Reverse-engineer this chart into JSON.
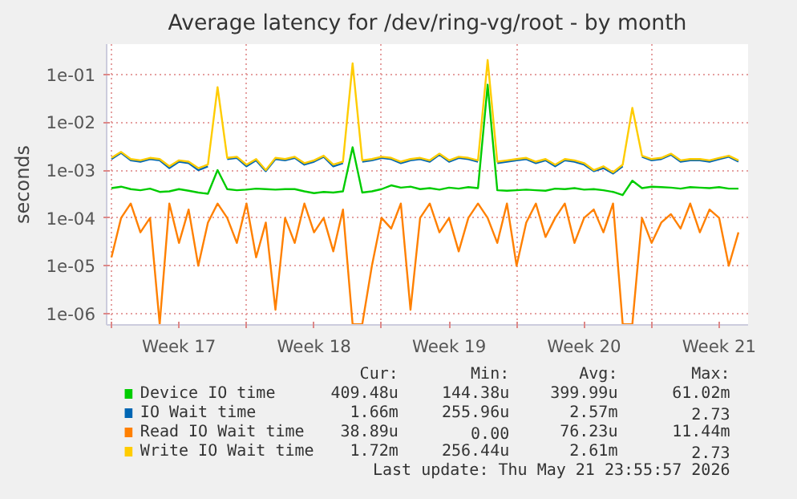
{
  "chart_data": {
    "type": "line",
    "title": "Average latency for /dev/ring-vg/root - by month",
    "ylabel": "seconds",
    "x": [
      "2026-04-19T00:00",
      "2026-04-19T12:00",
      "2026-04-20T00:00",
      "2026-04-20T12:00",
      "2026-04-21T00:00",
      "2026-04-21T12:00",
      "2026-04-22T00:00",
      "2026-04-22T12:00",
      "2026-04-23T00:00",
      "2026-04-23T12:00",
      "2026-04-24T00:00",
      "2026-04-24T12:00",
      "2026-04-25T00:00",
      "2026-04-25T12:00",
      "2026-04-26T00:00",
      "2026-04-26T12:00",
      "2026-04-27T00:00",
      "2026-04-27T12:00",
      "2026-04-28T00:00",
      "2026-04-28T12:00",
      "2026-04-29T00:00",
      "2026-04-29T12:00",
      "2026-04-30T00:00",
      "2026-04-30T12:00",
      "2026-05-01T00:00",
      "2026-05-01T12:00",
      "2026-05-02T00:00",
      "2026-05-02T12:00",
      "2026-05-03T00:00",
      "2026-05-03T12:00",
      "2026-05-04T00:00",
      "2026-05-04T12:00",
      "2026-05-05T00:00",
      "2026-05-05T12:00",
      "2026-05-06T00:00",
      "2026-05-06T12:00",
      "2026-05-07T00:00",
      "2026-05-07T12:00",
      "2026-05-08T00:00",
      "2026-05-08T12:00",
      "2026-05-09T00:00",
      "2026-05-09T12:00",
      "2026-05-10T00:00",
      "2026-05-10T12:00",
      "2026-05-11T00:00",
      "2026-05-11T12:00",
      "2026-05-12T00:00",
      "2026-05-12T12:00",
      "2026-05-13T00:00",
      "2026-05-13T12:00",
      "2026-05-14T00:00",
      "2026-05-14T12:00",
      "2026-05-15T00:00",
      "2026-05-15T12:00",
      "2026-05-16T00:00",
      "2026-05-16T12:00",
      "2026-05-17T00:00",
      "2026-05-17T12:00",
      "2026-05-18T00:00",
      "2026-05-18T12:00",
      "2026-05-19T00:00",
      "2026-05-19T12:00",
      "2026-05-20T00:00",
      "2026-05-20T12:00",
      "2026-05-21T00:00",
      "2026-05-21T12:00"
    ],
    "xlim": [
      "2026-04-18T18:00",
      "2026-05-22T00:00"
    ],
    "xticks": [
      {
        "value": "2026-04-19T00:00",
        "label": null
      },
      {
        "value": "2026-04-22T12:00",
        "label": "Week 17"
      },
      {
        "value": "2026-04-26T00:00",
        "label": null
      },
      {
        "value": "2026-04-29T12:00",
        "label": "Week 18"
      },
      {
        "value": "2026-05-03T00:00",
        "label": null
      },
      {
        "value": "2026-05-06T12:00",
        "label": "Week 19"
      },
      {
        "value": "2026-05-10T00:00",
        "label": null
      },
      {
        "value": "2026-05-13T12:00",
        "label": "Week 20"
      },
      {
        "value": "2026-05-17T00:00",
        "label": null
      },
      {
        "value": "2026-05-20T12:00",
        "label": "Week 21"
      }
    ],
    "log": "y",
    "ylim": [
      5.8e-07,
      0.43
    ],
    "yticks": [
      {
        "value": 1e-06,
        "label": "1e-06"
      },
      {
        "value": 1e-05,
        "label": "1e-05"
      },
      {
        "value": 0.0001,
        "label": "1e-04"
      },
      {
        "value": 0.001,
        "label": "1e-03"
      },
      {
        "value": 0.01,
        "label": "1e-02"
      },
      {
        "value": 0.1,
        "label": "1e-01"
      }
    ],
    "grid": true,
    "legend": "bottom",
    "marker": "none",
    "line_style": "solid",
    "series": [
      {
        "name": "Device IO time",
        "color": "#00cc00",
        "values": [
          0.00042,
          0.00045,
          0.0004,
          0.00038,
          0.00041,
          0.00035,
          0.00036,
          0.0004,
          0.00037,
          0.00034,
          0.00032,
          0.001,
          0.0004,
          0.00038,
          0.00039,
          0.00041,
          0.0004,
          0.00039,
          0.0004,
          0.0004,
          0.00036,
          0.00033,
          0.00035,
          0.00034,
          0.00036,
          0.003,
          0.00034,
          0.00036,
          0.0004,
          0.00048,
          0.00043,
          0.00045,
          0.0004,
          0.00042,
          0.00039,
          0.00043,
          0.00041,
          0.00044,
          0.00042,
          0.061,
          0.00038,
          0.00037,
          0.00038,
          0.00039,
          0.00038,
          0.00037,
          0.00041,
          0.0004,
          0.00042,
          0.00039,
          0.0004,
          0.00038,
          0.00035,
          0.0003,
          0.0006,
          0.00042,
          0.00045,
          0.00044,
          0.00043,
          0.00041,
          0.00044,
          0.00043,
          0.00042,
          0.00044,
          0.00041,
          0.00041
        ]
      },
      {
        "name": "IO Wait time",
        "color": "#0066b3",
        "values": [
          0.0017,
          0.0023,
          0.0016,
          0.0015,
          0.0017,
          0.0016,
          0.0011,
          0.0015,
          0.0014,
          0.001,
          0.0012,
          null,
          0.0017,
          0.0018,
          0.0012,
          0.0016,
          0.00095,
          0.0017,
          0.0016,
          0.0018,
          0.0013,
          0.0015,
          0.0019,
          0.0012,
          0.0014,
          null,
          0.0015,
          0.0016,
          0.0018,
          0.0017,
          0.0014,
          0.0016,
          0.0017,
          0.0015,
          0.0021,
          0.0015,
          0.0018,
          0.0017,
          0.0015,
          null,
          0.0014,
          0.0015,
          0.0016,
          0.0017,
          0.0014,
          0.0016,
          0.0012,
          0.0016,
          0.0015,
          0.0013,
          0.00095,
          0.0011,
          0.00085,
          0.0012,
          null,
          0.0019,
          0.0016,
          0.0017,
          0.0021,
          0.0015,
          0.0016,
          0.0016,
          0.0015,
          0.0017,
          0.0019,
          0.0015
        ]
      },
      {
        "name": "Read IO Wait time",
        "color": "#ff8000",
        "values": [
          1.5e-05,
          0.0001,
          0.0002,
          5e-05,
          0.0001,
          6e-07,
          0.0002,
          3e-05,
          0.00015,
          1e-05,
          8e-05,
          0.0002,
          0.0001,
          3e-05,
          0.0002,
          1.5e-05,
          8e-05,
          1.2e-06,
          0.0001,
          3e-05,
          0.0002,
          5e-05,
          0.0001,
          2e-05,
          0.00015,
          6e-07,
          6e-07,
          1e-05,
          0.0001,
          6e-05,
          0.0002,
          1.2e-06,
          0.0001,
          0.0002,
          5e-05,
          0.0001,
          2e-05,
          0.0001,
          0.0002,
          0.0001,
          3e-05,
          0.0002,
          1e-05,
          8e-05,
          0.0002,
          4e-05,
          0.0001,
          0.0002,
          3e-05,
          0.0001,
          0.00015,
          5e-05,
          0.0002,
          6e-07,
          6e-07,
          0.0001,
          3e-05,
          8e-05,
          0.00012,
          6e-05,
          0.0002,
          5e-05,
          0.00015,
          0.0001,
          1e-05,
          5e-05
        ]
      },
      {
        "name": "Write IO Wait time",
        "color": "#ffcc00",
        "values": [
          0.0018,
          0.0024,
          0.0017,
          0.0016,
          0.0018,
          0.0017,
          0.0012,
          0.0016,
          0.0015,
          0.0011,
          0.0013,
          0.054,
          0.0018,
          0.0019,
          0.0013,
          0.0017,
          0.001,
          0.0018,
          0.0017,
          0.0019,
          0.0014,
          0.0016,
          0.002,
          0.0013,
          0.0015,
          0.17,
          0.0016,
          0.0017,
          0.0019,
          0.0018,
          0.0015,
          0.0017,
          0.0018,
          0.0016,
          0.0022,
          0.0016,
          0.0019,
          0.0018,
          0.0016,
          0.2,
          0.0015,
          0.0016,
          0.0017,
          0.0018,
          0.0015,
          0.0017,
          0.0013,
          0.0017,
          0.0016,
          0.0014,
          0.001,
          0.0012,
          0.0009,
          0.0013,
          0.02,
          0.002,
          0.0017,
          0.0018,
          0.0022,
          0.0016,
          0.0017,
          0.0017,
          0.0016,
          0.0018,
          0.002,
          0.0016
        ]
      }
    ],
    "annotations": [
      "Cur:",
      "Min:",
      "Avg:",
      "Max:",
      "409.48u",
      "144.38u",
      "399.99u",
      "61.02m",
      "1.66m",
      "255.96u",
      "2.57m",
      "2.73",
      "38.89u",
      "0.00",
      "76.23u",
      "11.44m",
      "1.72m",
      "256.44u",
      "2.61m",
      "2.73",
      "Last update: Thu May 21 23:55:57 2026"
    ]
  }
}
